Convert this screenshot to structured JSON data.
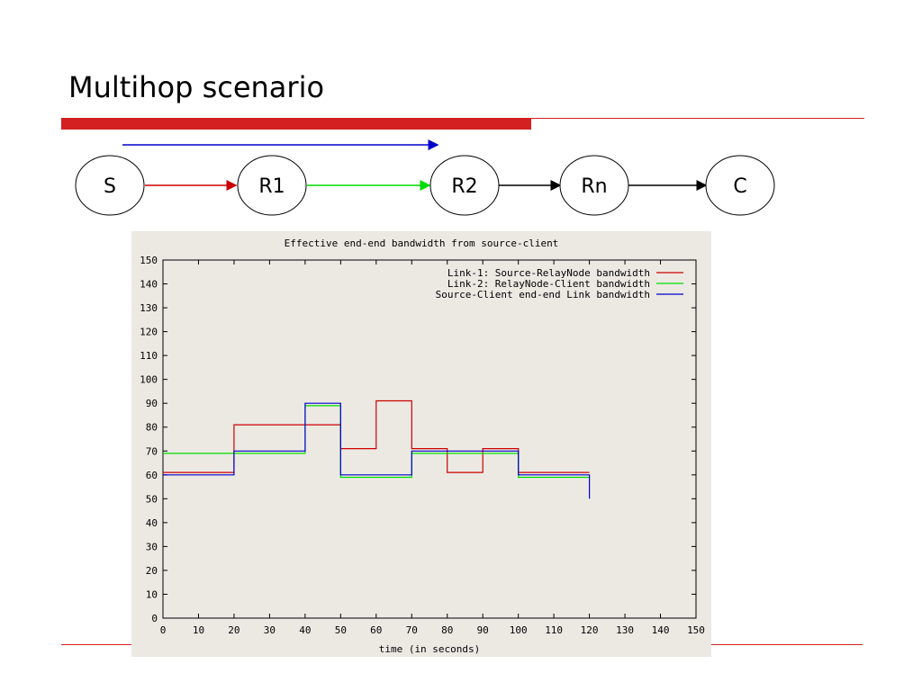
{
  "slide": {
    "title": "Multihop scenario",
    "accent_color": "#d42020"
  },
  "topology": {
    "nodes": [
      {
        "id": "S",
        "label": "S"
      },
      {
        "id": "R1",
        "label": "R1"
      },
      {
        "id": "R2",
        "label": "R2"
      },
      {
        "id": "Rn",
        "label": "Rn"
      },
      {
        "id": "C",
        "label": "C"
      }
    ],
    "links": [
      {
        "from": "S",
        "to": "R1",
        "color": "#cc0000"
      },
      {
        "from": "R1",
        "to": "R2",
        "color": "#00dd00"
      },
      {
        "from": "R2",
        "to": "Rn",
        "color": "#000000"
      },
      {
        "from": "Rn",
        "to": "C",
        "color": "#000000"
      }
    ],
    "end_to_end_arrow": {
      "from": "S",
      "to": "R2",
      "color": "#0000cc"
    }
  },
  "chart_data": {
    "type": "line",
    "step": true,
    "title": "Effective end-end bandwidth from source-client",
    "xlabel": "time (in seconds)",
    "ylabel": "",
    "xlim": [
      0,
      150
    ],
    "ylim": [
      0,
      150
    ],
    "xticks": [
      0,
      10,
      20,
      30,
      40,
      50,
      60,
      70,
      80,
      90,
      100,
      110,
      120,
      130,
      140,
      150
    ],
    "yticks": [
      0,
      10,
      20,
      30,
      40,
      50,
      60,
      70,
      80,
      90,
      100,
      110,
      120,
      130,
      140,
      150
    ],
    "grid": false,
    "legend_position": "top-right",
    "background": "#ece9e3",
    "series": [
      {
        "name": "Link-1: Source-RelayNode bandwidth",
        "color": "#cc0000",
        "x": [
          0,
          20,
          20,
          50,
          50,
          60,
          60,
          70,
          70,
          80,
          80,
          90,
          90,
          100,
          100,
          120
        ],
        "y": [
          61,
          61,
          81,
          81,
          71,
          71,
          91,
          91,
          71,
          71,
          61,
          61,
          71,
          71,
          61,
          61
        ]
      },
      {
        "name": "Link-2: RelayNode-Client bandwidth",
        "color": "#00dd00",
        "x": [
          0,
          20,
          20,
          40,
          40,
          50,
          50,
          70,
          70,
          100,
          100,
          120
        ],
        "y": [
          69,
          69,
          69,
          69,
          89,
          89,
          59,
          59,
          69,
          69,
          59,
          59
        ]
      },
      {
        "name": "Source-Client end-end Link bandwidth",
        "color": "#0000cc",
        "x": [
          0,
          20,
          20,
          40,
          40,
          50,
          50,
          70,
          70,
          100,
          100,
          120,
          120
        ],
        "y": [
          60,
          60,
          70,
          70,
          90,
          90,
          60,
          60,
          70,
          70,
          60,
          60,
          50
        ]
      }
    ]
  }
}
